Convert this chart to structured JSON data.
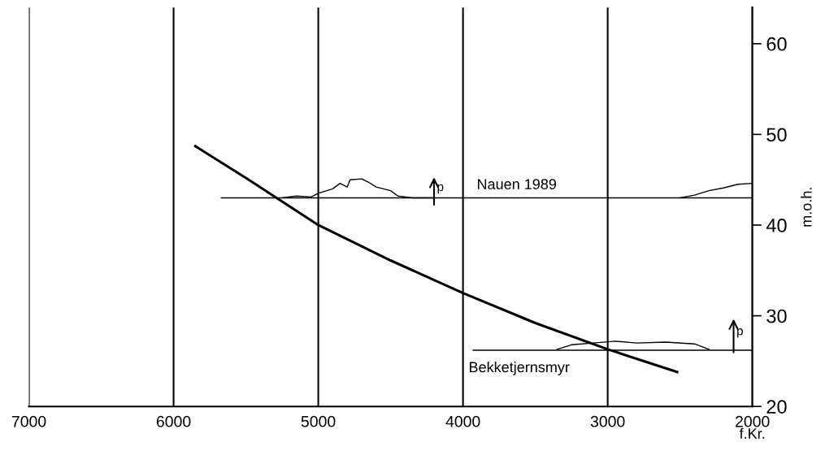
{
  "chart_data": {
    "type": "line",
    "xlabel": "f.Kr.",
    "ylabel": "m.o.h.",
    "xlim": [
      7000,
      2000
    ],
    "xticks": [
      7000,
      6000,
      5000,
      4000,
      3000,
      2000
    ],
    "ylim": [
      20,
      64
    ],
    "yticks": [
      20,
      30,
      40,
      50,
      60
    ],
    "grid": "x",
    "legend": false,
    "marker": "none",
    "line_style": "solid",
    "series": [
      {
        "color": "#000000",
        "x": [
          5850,
          5500,
          5000,
          4500,
          4000,
          3500,
          3000,
          2520
        ],
        "values": [
          48.7,
          45.2,
          40.0,
          36.1,
          32.5,
          29.2,
          26.3,
          23.8
        ]
      },
      {
        "name": "Nauen 1989",
        "color": "#000000",
        "x": [
          5670,
          2000
        ],
        "values": [
          43.0,
          43.0
        ]
      },
      {
        "color": "#000000",
        "x": [
          5250,
          5150,
          5050,
          5000,
          4900,
          4850,
          4800,
          4780,
          4700,
          4650,
          4600,
          4500,
          4450,
          4350,
          4200
        ],
        "values": [
          43.0,
          43.2,
          43.1,
          43.5,
          44.0,
          44.6,
          44.2,
          45.0,
          45.1,
          44.7,
          44.2,
          43.8,
          43.2,
          43.0,
          43.0
        ]
      },
      {
        "color": "#000000",
        "x": [
          2500,
          2400,
          2300,
          2200,
          2100,
          2000
        ],
        "values": [
          43.0,
          43.3,
          43.8,
          44.1,
          44.5,
          44.6
        ]
      },
      {
        "name": "Bekketjernsmyr",
        "color": "#000000",
        "x": [
          3930,
          2000
        ],
        "values": [
          26.2,
          26.2
        ]
      },
      {
        "color": "#000000",
        "x": [
          3350,
          3250,
          3100,
          2950,
          2800,
          2600,
          2400,
          2300
        ],
        "values": [
          26.3,
          26.8,
          27.0,
          27.2,
          27.0,
          27.1,
          26.9,
          26.3
        ]
      }
    ],
    "annotations": [
      "p",
      "p"
    ]
  }
}
